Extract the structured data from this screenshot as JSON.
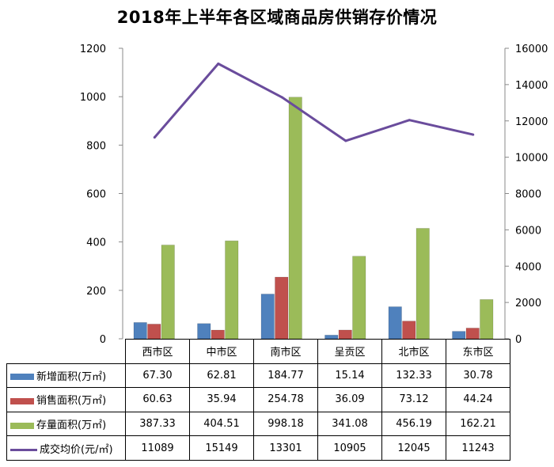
{
  "chart_data": {
    "type": "bar",
    "title": "2018年上半年各区域商品房供销存价情况",
    "categories": [
      "西市区",
      "中市区",
      "南市区",
      "呈贡区",
      "北市区",
      "东市区"
    ],
    "series": [
      {
        "name": "新增面积(万㎡)",
        "kind": "bar",
        "axis": "left",
        "color": "#4f81bd",
        "values": [
          67.3,
          62.81,
          184.77,
          15.14,
          132.33,
          30.78
        ],
        "labels": [
          "67.30",
          "62.81",
          "184.77",
          "15.14",
          "132.33",
          "30.78"
        ]
      },
      {
        "name": "销售面积(万㎡)",
        "kind": "bar",
        "axis": "left",
        "color": "#c0504d",
        "values": [
          60.63,
          35.94,
          254.78,
          36.09,
          73.12,
          44.24
        ],
        "labels": [
          "60.63",
          "35.94",
          "254.78",
          "36.09",
          "73.12",
          "44.24"
        ]
      },
      {
        "name": "存量面积(万㎡)",
        "kind": "bar",
        "axis": "left",
        "color": "#9bbb59",
        "values": [
          387.33,
          404.51,
          998.18,
          341.08,
          456.19,
          162.21
        ],
        "labels": [
          "387.33",
          "404.51",
          "998.18",
          "341.08",
          "456.19",
          "162.21"
        ]
      },
      {
        "name": "成交均价(元/㎡)",
        "kind": "line",
        "axis": "right",
        "color": "#6a4c9c",
        "values": [
          11089,
          15149,
          13301,
          10905,
          12045,
          11243
        ],
        "labels": [
          "11089",
          "15149",
          "13301",
          "10905",
          "12045",
          "11243"
        ]
      }
    ],
    "y_left": {
      "min": 0,
      "max": 1200,
      "ticks": [
        "0",
        "200",
        "400",
        "600",
        "800",
        "1000",
        "1200"
      ]
    },
    "y_right": {
      "min": 0,
      "max": 16000,
      "ticks": [
        "0",
        "2000",
        "4000",
        "6000",
        "8000",
        "10000",
        "12000",
        "14000",
        "16000"
      ]
    },
    "grid": false,
    "legend": "data-table-below"
  }
}
